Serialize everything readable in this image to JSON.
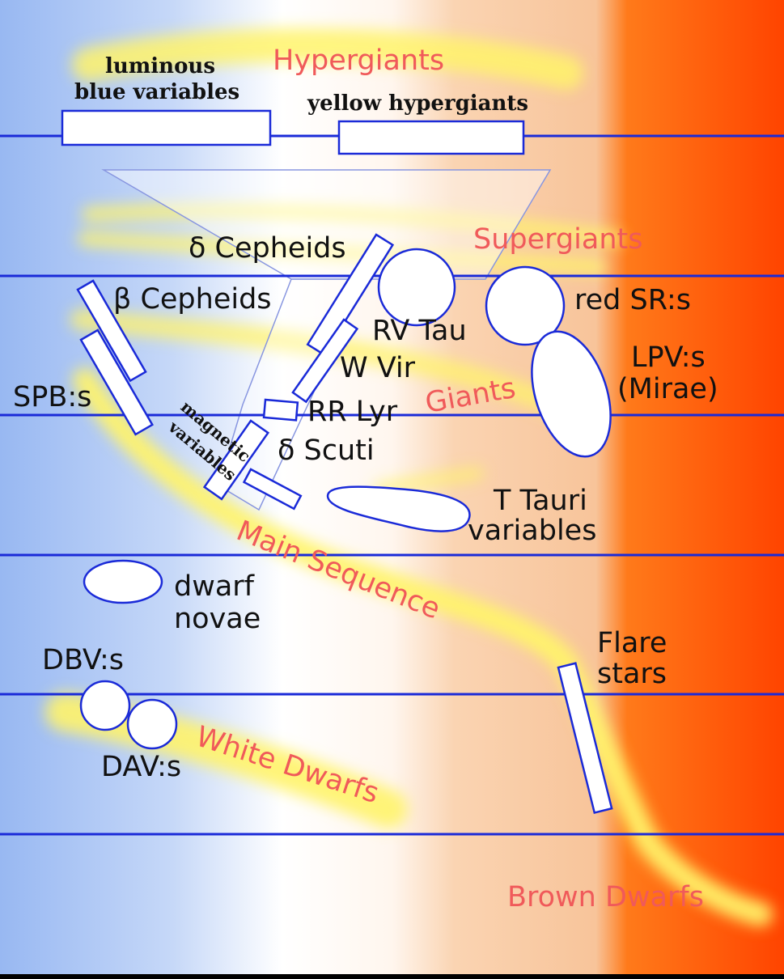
{
  "colors": {
    "background_left": "#98b8f2",
    "background_mid": "#ffffff",
    "background_peach": "#f8c8a0",
    "background_orange": "#ff6a00",
    "background_right": "#ff4400",
    "band_yellow": "#fff36a",
    "divider_blue": "#1a2ad8",
    "class_label": "#f05a5a",
    "variable_label": "#111111"
  },
  "luminosity_classes": {
    "hypergiants": "Hypergiants",
    "supergiants": "Supergiants",
    "giants": "Giants",
    "main_sequence": "Main Sequence",
    "white_dwarfs": "White Dwarfs",
    "brown_dwarfs": "Brown Dwarfs"
  },
  "variable_types": {
    "luminous_blue_variables_line1": "luminous",
    "luminous_blue_variables_line2": "blue variables",
    "yellow_hypergiants": "yellow hypergiants",
    "delta_cepheids": "δ Cepheids",
    "beta_cepheids": "β Cepheids",
    "red_srs": "red SR:s",
    "rv_tau": "RV Tau",
    "w_vir": "W Vir",
    "lpvs_line1": "LPV:s",
    "lpvs_line2": "(Mirae)",
    "spbs": "SPB:s",
    "rr_lyr": "RR Lyr",
    "magnetic_variables_line1": "magnetic",
    "magnetic_variables_line2": "variables",
    "delta_scuti": "δ Scuti",
    "t_tauri_line1": "T Tauri",
    "t_tauri_line2": "variables",
    "dwarf_novae_line1": "dwarf",
    "dwarf_novae_line2": "novae",
    "flare_stars_line1": "Flare",
    "flare_stars_line2": "stars",
    "dbvs": "DBV:s",
    "davs": "DAV:s"
  }
}
